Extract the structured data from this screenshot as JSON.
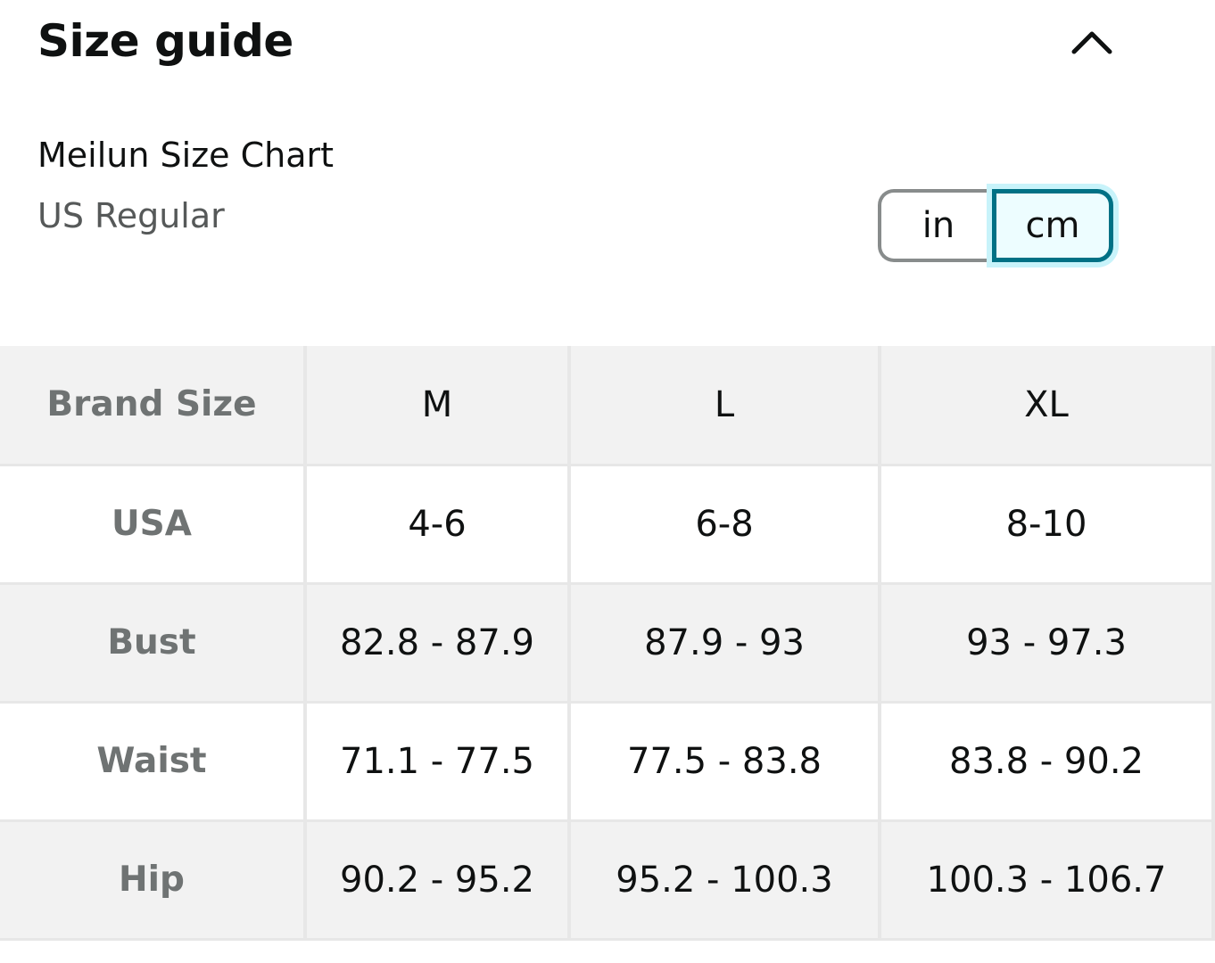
{
  "header": {
    "title": "Size guide",
    "collapse_icon": "chevron-up-icon"
  },
  "chart": {
    "name": "Meilun Size Chart",
    "region": "US Regular"
  },
  "units": {
    "options": [
      "in",
      "cm"
    ],
    "selected": "cm"
  },
  "colors": {
    "accent": "#007185",
    "selected_bg": "#edfdff",
    "row_shade": "#f2f2f2",
    "label_gray": "#6f7373"
  },
  "table": {
    "header_row": {
      "label": "Brand Size",
      "values": [
        "M",
        "L",
        "XL"
      ]
    },
    "rows": [
      {
        "label": "USA",
        "values": [
          "4-6",
          "6-8",
          "8-10"
        ]
      },
      {
        "label": "Bust",
        "values": [
          "82.8 - 87.9",
          "87.9 - 93",
          "93 - 97.3"
        ]
      },
      {
        "label": "Waist",
        "values": [
          "71.1 - 77.5",
          "77.5 - 83.8",
          "83.8 - 90.2"
        ]
      },
      {
        "label": "Hip",
        "values": [
          "90.2 - 95.2",
          "95.2 - 100.3",
          "100.3 - 106.7"
        ]
      }
    ]
  }
}
